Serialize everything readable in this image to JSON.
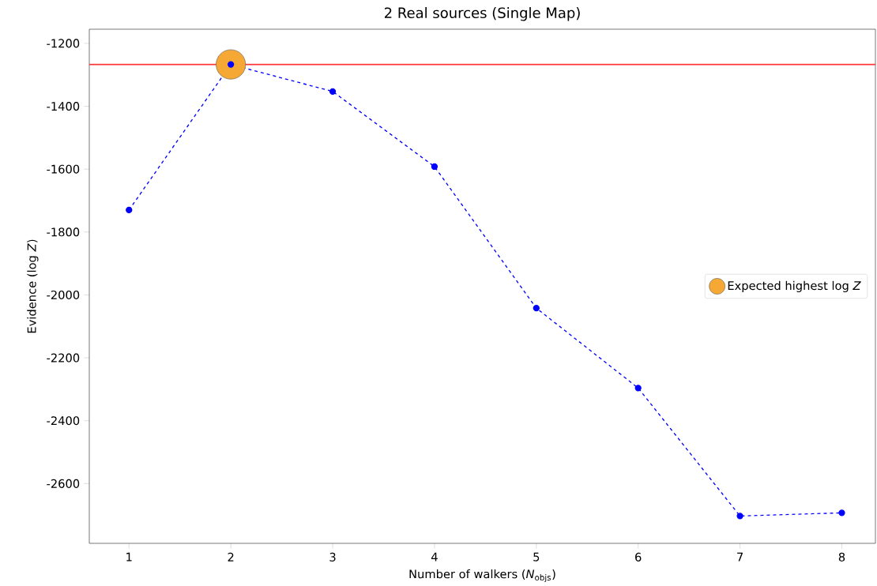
{
  "chart_data": {
    "type": "line",
    "title": "2 Real sources (Single Map)",
    "xlabel": "Number of walkers (*N*$_{objs}$)",
    "ylabel": "Evidence (log *Z*)",
    "x": [
      1,
      2,
      3,
      4,
      5,
      6,
      7,
      8
    ],
    "series": [
      {
        "color": "#0000ff",
        "values": [
          -1730,
          -1267,
          -1353,
          -1592,
          -2042,
          -2296,
          -2703,
          -2693
        ],
        "marker": "circle",
        "line_style": "dashed"
      },
      {
        "type": "scatter",
        "name": "Expected highest log *Z*",
        "color": "#f5a833",
        "x": [
          2
        ],
        "values": [
          -1267
        ],
        "marker": "circle"
      }
    ],
    "ref_lines": [
      {
        "axis": "y",
        "value": -1267,
        "color": "#ff3333"
      }
    ],
    "xlim": [
      0.61,
      8.33
    ],
    "ylim": [
      -2790,
      -1155
    ],
    "xticks": [
      1,
      2,
      3,
      4,
      5,
      6,
      7,
      8
    ],
    "yticks": [
      -2600,
      -2400,
      -2200,
      -2000,
      -1800,
      -1600,
      -1400,
      -1200
    ],
    "legend": "right",
    "grid": false
  }
}
